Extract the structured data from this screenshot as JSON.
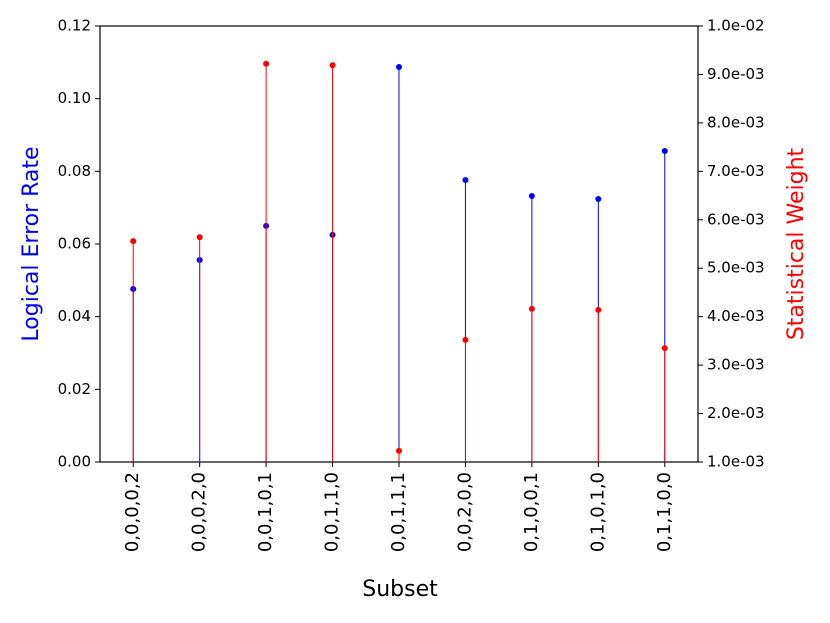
{
  "chart_data": {
    "type": "stem",
    "x_label": "Subset",
    "y_label": "Logical Error Rate",
    "y2_label": "Statistical Weight",
    "y_label_color": "#0000ff",
    "y2_label_color": "#ff0000",
    "categories": [
      "0,0,0,0,2",
      "0,0,0,2,0",
      "0,0,1,0,1",
      "0,0,1,1,0",
      "0,0,1,1,1",
      "0,0,2,0,0",
      "0,1,0,0,1",
      "0,1,0,1,0",
      "0,1,1,0,0"
    ],
    "series": [
      {
        "color": "#0000ff",
        "values": [
          0.0476,
          0.0556,
          0.065,
          0.0625,
          0.1087,
          0.0776,
          0.0732,
          0.0724,
          0.0856
        ]
      },
      {
        "color": "#ff0000",
        "axis": "y2",
        "values": [
          0.00556,
          0.00564,
          0.00922,
          0.00919,
          0.00123,
          0.00352,
          0.00416,
          0.00414,
          0.00335
        ]
      }
    ],
    "ylim": [
      0,
      0.12
    ],
    "yticks": [
      {
        "value": 0,
        "label": "0.00"
      },
      0.02,
      0.04,
      0.06,
      0.08,
      {
        "value": 0.1,
        "label": "0.10"
      },
      0.12
    ],
    "y2lim": [
      0.001,
      0.01
    ],
    "y2ticks": [
      {
        "value": 0.001,
        "label": "1.0e-03"
      },
      {
        "value": 0.002,
        "label": "2.0e-03"
      },
      {
        "value": 0.003,
        "label": "3.0e-03"
      },
      {
        "value": 0.004,
        "label": "4.0e-03"
      },
      {
        "value": 0.005,
        "label": "5.0e-03"
      },
      {
        "value": 0.006,
        "label": "6.0e-03"
      },
      {
        "value": 0.007,
        "label": "7.0e-03"
      },
      {
        "value": 0.008,
        "label": "8.0e-03"
      },
      {
        "value": 0.009,
        "label": "9.0e-03"
      },
      {
        "value": 0.01,
        "label": "1.0e-02"
      }
    ]
  }
}
